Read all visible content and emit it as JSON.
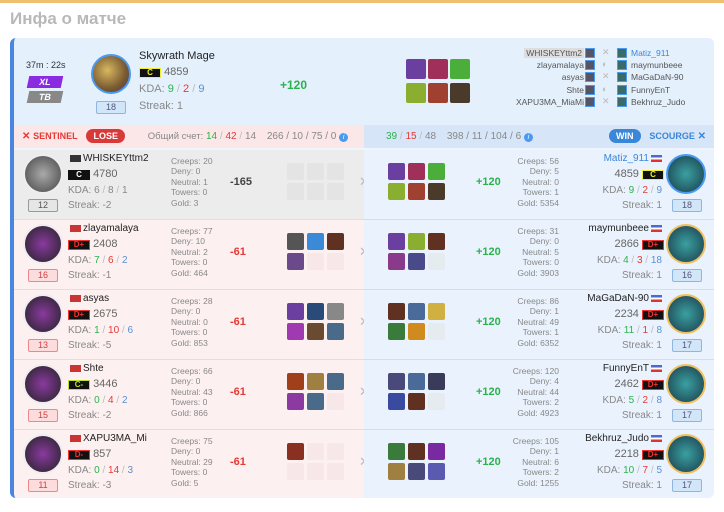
{
  "title": "Инфа о матче",
  "header": {
    "time": "37m : 22s",
    "mode_badge": "XL",
    "mode_badge2": "TB",
    "hero": "Skywrath Mage",
    "rank": "C",
    "rating": "4859",
    "kda_label": "KDA:",
    "kills": "9",
    "deaths": "2",
    "assists": "9",
    "streak": "Streak: 1",
    "level": "18",
    "diff": "+120",
    "items": [
      "#6a3fa0",
      "#a0305a",
      "#4cae3a",
      "#8aae30",
      "#a04030",
      "#4a3a2a"
    ],
    "players_left": [
      "WHISKEYttm2",
      "zlayamalaya",
      "asyas",
      "Shte",
      "XAPU3MA_MiaMi"
    ],
    "players_right": [
      "Matiz_911",
      "maymunbeee",
      "MaGaDaN-90",
      "FunnyEnT",
      "Bekhruz_Judo"
    ]
  },
  "scorebar": {
    "left_team": "SENTINEL",
    "left_result": "LOSE",
    "total_label": "Общий счет:",
    "left_k": "14",
    "left_d": "42",
    "left_a": "14",
    "left_stats": "266 / 10 / 75 / 0",
    "right_k": "39",
    "right_d": "15",
    "right_a": "48",
    "right_stats": "398 / 11 / 104 / 6",
    "right_result": "WIN",
    "right_team": "SCOURGE",
    "colors": {
      "lose": "#d83a3a",
      "win": "#3a86d8"
    }
  },
  "sentinel": [
    {
      "name": "WHISKEYttm2",
      "rank": "C",
      "rating": "4780",
      "k": "6",
      "d": "8",
      "a": "1",
      "streak": "Streak: -2",
      "level": "12",
      "creeps": "Creeps: 20",
      "deny": "Deny: 0",
      "neutral": "Neutral: 1",
      "towers": "Towers: 0",
      "gold": "Gold: 3",
      "diff": "-165",
      "leaver": true,
      "items": []
    },
    {
      "name": "zlayamalaya",
      "rank": "D+",
      "rating": "2408",
      "k": "7",
      "d": "6",
      "a": "2",
      "streak": "Streak: -1",
      "level": "16",
      "creeps": "Creeps: 77",
      "deny": "Deny: 10",
      "neutral": "Neutral: 2",
      "towers": "Towers: 0",
      "gold": "Gold: 464",
      "diff": "-61",
      "items": [
        "#555",
        "#3a8ad8",
        "#603020",
        "#6a4a8a"
      ]
    },
    {
      "name": "asyas",
      "rank": "D+",
      "rating": "2675",
      "k": "1",
      "d": "10",
      "a": "6",
      "streak": "Streak: -5",
      "level": "13",
      "creeps": "Creeps: 28",
      "deny": "Deny: 0",
      "neutral": "Neutral: 0",
      "towers": "Towers: 0",
      "gold": "Gold: 853",
      "diff": "-61",
      "items": [
        "#6a3fa0",
        "#2a4a7a",
        "#888",
        "#a03ab0",
        "#6a4a30",
        "#4a6a8a"
      ]
    },
    {
      "name": "Shte",
      "rank": "C-",
      "rating": "3446",
      "k": "0",
      "d": "4",
      "a": "2",
      "streak": "Streak: -2",
      "level": "15",
      "creeps": "Creeps: 66",
      "deny": "Deny: 0",
      "neutral": "Neutral: 43",
      "towers": "Towers: 0",
      "gold": "Gold: 866",
      "diff": "-61",
      "items": [
        "#a0401a",
        "#a08040",
        "#4a6a8a",
        "#8a3aa0",
        "#4a6a8a"
      ]
    },
    {
      "name": "XAPU3MA_Mi",
      "rank": "D-",
      "rating": "857",
      "k": "0",
      "d": "14",
      "a": "3",
      "streak": "Streak: -3",
      "level": "11",
      "creeps": "Creeps: 75",
      "deny": "Deny: 0",
      "neutral": "Neutral: 29",
      "towers": "Towers: 0",
      "gold": "Gold: 5",
      "diff": "-61",
      "items": [
        "#8a3020"
      ]
    }
  ],
  "scourge": [
    {
      "name": "Matiz_911",
      "rank": "C",
      "rating": "4859",
      "k": "9",
      "d": "2",
      "a": "9",
      "streak": "Streak: 1",
      "level": "18",
      "creeps": "Creeps: 56",
      "deny": "Deny: 5",
      "neutral": "Neutral: 0",
      "towers": "Towers: 1",
      "gold": "Gold: 5354",
      "diff": "+120",
      "me": true,
      "items": [
        "#6a3fa0",
        "#a0305a",
        "#4cae3a",
        "#8aae30",
        "#a04030",
        "#4a3a2a"
      ]
    },
    {
      "name": "maymunbeee",
      "rank": "D+",
      "rating": "2866",
      "k": "4",
      "d": "3",
      "a": "18",
      "streak": "Streak: 1",
      "level": "16",
      "creeps": "Creeps: 31",
      "deny": "Deny: 0",
      "neutral": "Neutral: 5",
      "towers": "Towers: 0",
      "gold": "Gold: 3903",
      "diff": "+120",
      "items": [
        "#6a3fa0",
        "#8aae30",
        "#603020",
        "#8a3a8a",
        "#4a4a8a"
      ]
    },
    {
      "name": "MaGaDaN-90",
      "rank": "D+",
      "rating": "2234",
      "k": "11",
      "d": "1",
      "a": "8",
      "streak": "Streak: 1",
      "level": "17",
      "creeps": "Creeps: 86",
      "deny": "Deny: 1",
      "neutral": "Neutral: 49",
      "towers": "Towers: 1",
      "gold": "Gold: 6352",
      "diff": "+120",
      "items": [
        "#603020",
        "#4a6a9a",
        "#d0b040",
        "#3a7a3a",
        "#d08a20"
      ]
    },
    {
      "name": "FunnyEnT",
      "rank": "D+",
      "rating": "2462",
      "k": "5",
      "d": "2",
      "a": "8",
      "streak": "Streak: 1",
      "level": "17",
      "creeps": "Creeps: 120",
      "deny": "Deny: 4",
      "neutral": "Neutral: 44",
      "towers": "Towers: 2",
      "gold": "Gold: 4923",
      "diff": "+120",
      "items": [
        "#4a4a7a",
        "#4a6a9a",
        "#3a3a5a",
        "#3a4aa0",
        "#603020"
      ]
    },
    {
      "name": "Bekhruz_Judo",
      "rank": "D+",
      "rating": "2218",
      "k": "10",
      "d": "7",
      "a": "5",
      "streak": "Streak: 1",
      "level": "17",
      "creeps": "Creeps: 105",
      "deny": "Deny: 1",
      "neutral": "Neutral: 6",
      "towers": "Towers: 2",
      "gold": "Gold: 1255",
      "diff": "+120",
      "items": [
        "#3a7a3a",
        "#603020",
        "#7a2aa0",
        "#a08040",
        "#4a4a7a",
        "#5a5ab0"
      ]
    }
  ]
}
